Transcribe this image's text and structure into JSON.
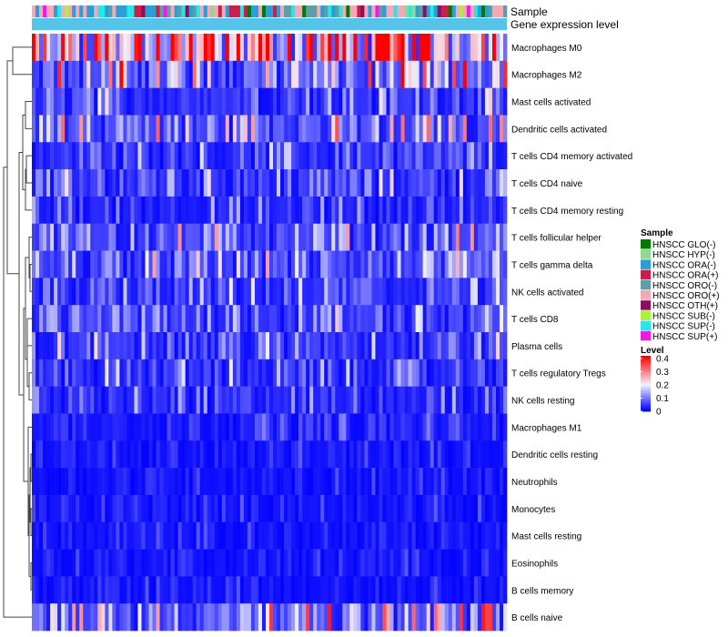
{
  "chart_data": {
    "type": "heatmap",
    "title": "",
    "annotation_tracks": [
      "Sample",
      "Gene expression level"
    ],
    "rows": [
      "Macrophages M0",
      "Macrophages M2",
      "Mast cells activated",
      "Dendritic cells activated",
      "T cells CD4 memory activated",
      "T cells CD4 naive",
      "T cells CD4 memory resting",
      "T cells follicular helper",
      "T cells gamma delta",
      "NK cells activated",
      "T cells CD8",
      "Plasma cells",
      "T cells regulatory  Tregs",
      "NK cells resting",
      "Macrophages M1",
      "Dendritic cells resting",
      "Neutrophils",
      "Monocytes",
      "Mast cells resting",
      "Eosinophils",
      "B cells memory",
      "B cells naive"
    ],
    "row_mean_levels": [
      0.26,
      0.11,
      0.06,
      0.09,
      0.05,
      0.06,
      0.04,
      0.08,
      0.07,
      0.05,
      0.07,
      0.06,
      0.05,
      0.04,
      0.03,
      0.02,
      0.02,
      0.02,
      0.02,
      0.02,
      0.02,
      0.1
    ],
    "n_samples": 130,
    "sample_legend": {
      "title": "Sample",
      "entries": [
        {
          "label": "HNSCC GLO(-)",
          "color": "#007a00"
        },
        {
          "label": "HNSCC HYP(-)",
          "color": "#8fd88f"
        },
        {
          "label": "HNSCC ORA(-)",
          "color": "#2a9fd6"
        },
        {
          "label": "HNSCC ORA(+)",
          "color": "#c8204a"
        },
        {
          "label": "HNSCC ORO(-)",
          "color": "#5c9ea5"
        },
        {
          "label": "HNSCC ORO(+)",
          "color": "#f4a8b8"
        },
        {
          "label": "HNSCC OTH(+)",
          "color": "#8b0f5a"
        },
        {
          "label": "HNSCC SUB(-)",
          "color": "#a8f23a"
        },
        {
          "label": "HNSCC SUP(-)",
          "color": "#27e6e8"
        },
        {
          "label": "HNSCC SUP(+)",
          "color": "#f219e6"
        }
      ],
      "frequency_weights": [
        2,
        3,
        14,
        3,
        7,
        12,
        1,
        1,
        6,
        2
      ]
    },
    "level_legend": {
      "title": "Level",
      "ticks": [
        "0.4",
        "0.3",
        "0.2",
        "0.1",
        "0"
      ],
      "tick_values": [
        0.4,
        0.3,
        0.2,
        0.1,
        0
      ],
      "range": [
        0,
        0.42
      ],
      "color_low": "#0000ff",
      "color_mid": "#f2f2ff",
      "color_high": "#ff0000"
    },
    "gene_expression_level_color": "#56c3e8"
  }
}
